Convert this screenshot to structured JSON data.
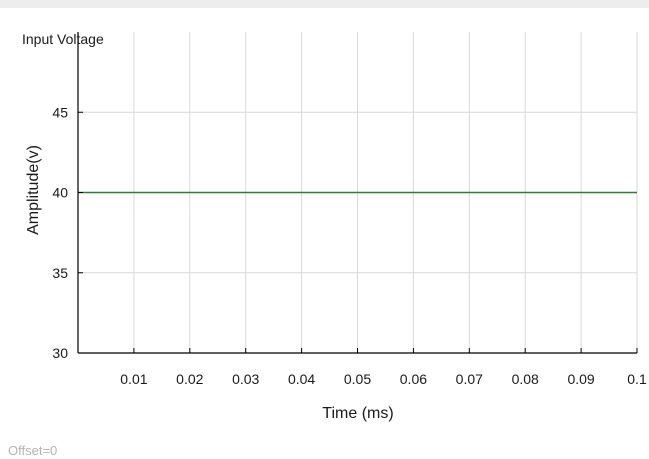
{
  "scope": {
    "offset_label": "Offset=0"
  },
  "chart_data": {
    "type": "line",
    "title": "Input Voltage",
    "xlabel": "Time (ms)",
    "ylabel": "Amplitude(v)",
    "xlim": [
      0,
      0.1
    ],
    "ylim": [
      30,
      50
    ],
    "xticks": [
      0.01,
      0.02,
      0.03,
      0.04,
      0.05,
      0.06,
      0.07,
      0.08,
      0.09,
      0.1
    ],
    "xtick_labels": [
      "0.01",
      "0.02",
      "0.03",
      "0.04",
      "0.05",
      "0.06",
      "0.07",
      "0.08",
      "0.09",
      "0.1"
    ],
    "yticks": [
      30,
      35,
      40,
      45
    ],
    "ytick_labels": [
      "30",
      "35",
      "40",
      "45"
    ],
    "grid": true,
    "series": [
      {
        "color": "#2e7d32",
        "x": [
          0,
          0.1
        ],
        "y": [
          40,
          40
        ]
      }
    ]
  }
}
